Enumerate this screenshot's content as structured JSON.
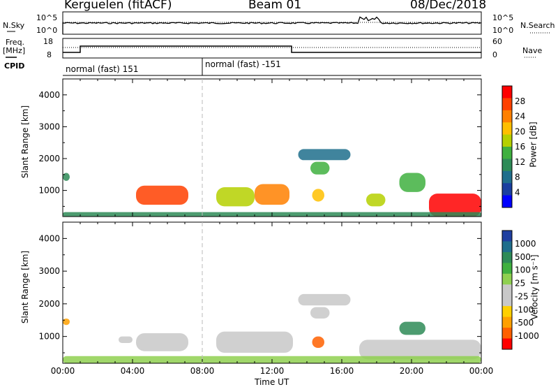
{
  "header": {
    "station": "Kerguelen (fitACF)",
    "beam": "Beam 01",
    "date": "08/Dec/2018"
  },
  "top_panels": {
    "nsky_label": "N.Sky",
    "nsky_ticks": [
      "10^5",
      "10^0"
    ],
    "nsearch_label": "N.Search",
    "freq_label_1": "Freq.",
    "freq_label_2": "[MHz]",
    "freq_ticks": [
      "18",
      "8"
    ],
    "nave_label": "Nave",
    "nave_ticks": [
      "60",
      "0"
    ],
    "cpid_label": "CPID",
    "cpid_segments": [
      "normal (fast) 151",
      "normal (fast) -151"
    ]
  },
  "chart_data": [
    {
      "type": "heatmap",
      "name": "Power",
      "ylabel": "Slant Range [km]",
      "ylim": [
        180,
        4500
      ],
      "yticks": [
        1000,
        2000,
        3000,
        4000
      ],
      "xlabel": "Time UT",
      "xticks": [
        "00:00",
        "04:00",
        "08:00",
        "12:00",
        "16:00",
        "20:00",
        "00:00"
      ],
      "colorbar_label": "Power [dB]",
      "colorbar_ticks": [
        "28",
        "24",
        "20",
        "16",
        "12",
        "8",
        "4"
      ],
      "colorbar_colors": [
        "#ff0000",
        "#ff4000",
        "#ff8000",
        "#ffbf00",
        "#b5d000",
        "#3fb03f",
        "#2e8b57",
        "#1f6e8c",
        "#1a3fa0",
        "#0000ff"
      ],
      "echo_regions": [
        {
          "t0": 0.0,
          "t1": 0.4,
          "r0": 1300,
          "r1": 1550,
          "level": 6
        },
        {
          "t0": 4.2,
          "t1": 7.2,
          "r0": 550,
          "r1": 1150,
          "level": 1
        },
        {
          "t0": 8.8,
          "t1": 11.0,
          "r0": 500,
          "r1": 1100,
          "level": 4
        },
        {
          "t0": 11.0,
          "t1": 13.0,
          "r0": 550,
          "r1": 1200,
          "level": 2
        },
        {
          "t0": 14.3,
          "t1": 15.0,
          "r0": 650,
          "r1": 1050,
          "level": 3
        },
        {
          "t0": 14.2,
          "t1": 15.3,
          "r0": 1500,
          "r1": 1900,
          "level": 5
        },
        {
          "t0": 13.5,
          "t1": 16.5,
          "r0": 1950,
          "r1": 2300,
          "level": 7
        },
        {
          "t0": 17.4,
          "t1": 18.5,
          "r0": 500,
          "r1": 900,
          "level": 4
        },
        {
          "t0": 19.3,
          "t1": 20.8,
          "r0": 950,
          "r1": 1550,
          "level": 5
        },
        {
          "t0": 21.0,
          "t1": 24.0,
          "r0": 180,
          "r1": 900,
          "level": 0
        },
        {
          "t0": 0.0,
          "t1": 24.0,
          "r0": 180,
          "r1": 320,
          "level": 6
        }
      ]
    },
    {
      "type": "heatmap",
      "name": "Velocity",
      "ylabel": "Slant Range [km]",
      "ylim": [
        180,
        4500
      ],
      "yticks": [
        1000,
        2000,
        3000,
        4000
      ],
      "xlabel": "Time UT",
      "xticks": [
        "00:00",
        "04:00",
        "08:00",
        "12:00",
        "16:00",
        "20:00",
        "00:00"
      ],
      "colorbar_label": "Velocity [m s⁻¹]",
      "colorbar_ticks": [
        "1000",
        "500",
        "100",
        "25",
        "-25",
        "-100",
        "-500",
        "-1000"
      ],
      "colorbar_colors": [
        "#1f3fa0",
        "#1f6e8c",
        "#2e8b57",
        "#3fb03f",
        "#8fd050",
        "#c8c8c8",
        "#c8c8c8",
        "#ffd000",
        "#ffa000",
        "#ff6000",
        "#ff0000"
      ],
      "echo_regions": [
        {
          "t0": 0.0,
          "t1": 0.4,
          "r0": 1350,
          "r1": 1550,
          "level": 8
        },
        {
          "t0": 4.2,
          "t1": 7.2,
          "r0": 550,
          "r1": 1100,
          "level": 5
        },
        {
          "t0": 3.2,
          "t1": 4.0,
          "r0": 800,
          "r1": 1000,
          "level": 5
        },
        {
          "t0": 8.8,
          "t1": 13.2,
          "r0": 500,
          "r1": 1150,
          "level": 5
        },
        {
          "t0": 14.3,
          "t1": 15.0,
          "r0": 650,
          "r1": 1000,
          "level": 9
        },
        {
          "t0": 14.2,
          "t1": 15.3,
          "r0": 1550,
          "r1": 1900,
          "level": 5
        },
        {
          "t0": 13.5,
          "t1": 16.5,
          "r0": 1950,
          "r1": 2300,
          "level": 5
        },
        {
          "t0": 19.3,
          "t1": 20.8,
          "r0": 1050,
          "r1": 1450,
          "level": 2
        },
        {
          "t0": 17.0,
          "t1": 24.0,
          "r0": 300,
          "r1": 900,
          "level": 5
        },
        {
          "t0": 0.0,
          "t1": 24.0,
          "r0": 180,
          "r1": 400,
          "level": 4
        }
      ]
    }
  ]
}
